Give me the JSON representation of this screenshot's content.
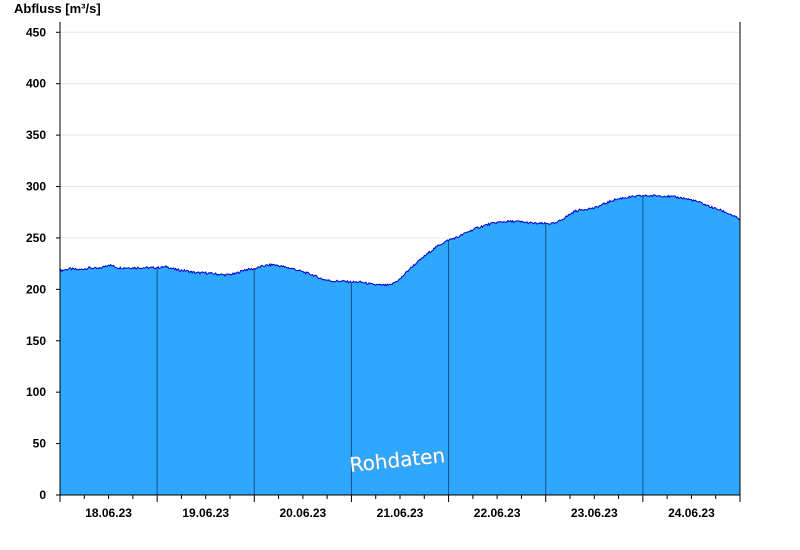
{
  "chart_data": {
    "type": "area",
    "ylabel": "Abfluss [m³/s]",
    "ylim": [
      0,
      460
    ],
    "yticks": [
      0,
      50,
      100,
      150,
      200,
      250,
      300,
      350,
      400,
      450
    ],
    "grid": true,
    "watermark": "Rohdaten",
    "colors": {
      "fill": "#2ea8ff",
      "line": "#0000cc",
      "day_lines": "#1a4f8a",
      "grid": "#e6e6e6"
    },
    "days": [
      "18.06.23",
      "19.06.23",
      "20.06.23",
      "21.06.23",
      "22.06.23",
      "23.06.23",
      "24.06.23"
    ],
    "series": [
      {
        "x": [
          0,
          0.1,
          0.2,
          0.3,
          0.4,
          0.5,
          0.6,
          0.7,
          0.8,
          0.9,
          1.0,
          1.1,
          1.2,
          1.3,
          1.4,
          1.5,
          1.6,
          1.7,
          1.8,
          1.9,
          2.0,
          2.1,
          2.2,
          2.3,
          2.4,
          2.5,
          2.6,
          2.7,
          2.8,
          2.9,
          3.0,
          3.1,
          3.2,
          3.3,
          3.4,
          3.5,
          3.6,
          3.7,
          3.8,
          3.9,
          4.0,
          4.1,
          4.2,
          4.3,
          4.4,
          4.5,
          4.6,
          4.7,
          4.8,
          4.9,
          5.0,
          5.1,
          5.2,
          5.3,
          5.4,
          5.5,
          5.6,
          5.7,
          5.8,
          5.9,
          6.0,
          6.1,
          6.2,
          6.3,
          6.4,
          6.5,
          6.6,
          6.7,
          6.8,
          6.9,
          7.0
        ],
        "values": [
          218,
          220,
          219,
          221,
          220,
          224,
          221,
          221,
          221,
          221,
          221,
          222,
          219,
          218,
          216,
          216,
          215,
          214,
          215,
          219,
          220,
          223,
          224,
          222,
          220,
          217,
          214,
          210,
          208,
          208,
          207,
          207,
          205,
          204,
          204,
          210,
          220,
          228,
          236,
          243,
          248,
          251,
          256,
          260,
          263,
          265,
          266,
          266,
          265,
          264,
          264,
          264,
          270,
          276,
          278,
          279,
          283,
          287,
          289,
          290,
          291,
          291,
          291,
          290,
          289,
          287,
          284,
          280,
          277,
          273,
          268
        ]
      }
    ]
  }
}
